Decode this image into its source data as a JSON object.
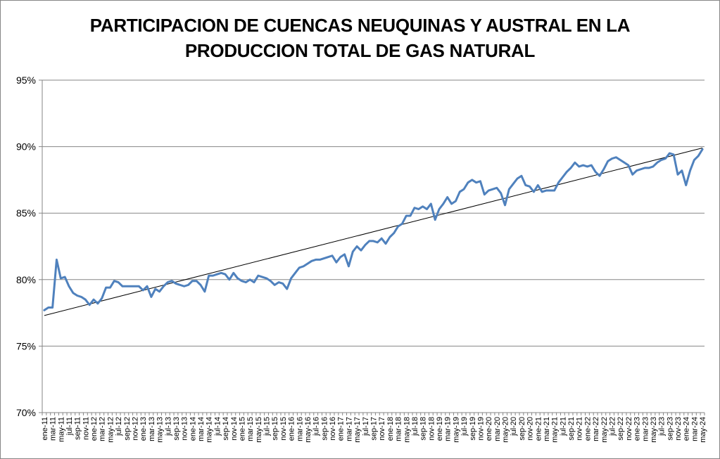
{
  "chart_data": {
    "type": "line",
    "title_line1": "PARTICIPACION DE CUENCAS NEUQUINAS Y AUSTRAL EN LA",
    "title_line2": "PRODUCCION TOTAL DE GAS NATURAL",
    "xlabel": "",
    "ylabel": "",
    "y_ticks": [
      "70%",
      "75%",
      "80%",
      "85%",
      "90%",
      "95%"
    ],
    "ylim": [
      70,
      95
    ],
    "grid": "horizontal",
    "legend": "none",
    "x_labels": [
      "ene-11",
      "mar-11",
      "may-11",
      "jul-11",
      "sep-11",
      "nov-11",
      "ene-12",
      "mar-12",
      "may-12",
      "jul-12",
      "sep-12",
      "nov-12",
      "ene-13",
      "mar-13",
      "may-13",
      "jul-13",
      "sep-13",
      "nov-13",
      "ene-14",
      "mar-14",
      "may-14",
      "jul-14",
      "sep-14",
      "nov-14",
      "ene-15",
      "mar-15",
      "may-15",
      "jul-15",
      "sep-15",
      "nov-15",
      "ene-16",
      "mar-16",
      "may-16",
      "jul-16",
      "sep-16",
      "nov-16",
      "ene-17",
      "mar-17",
      "may-17",
      "jul-17",
      "sep-17",
      "nov-17",
      "ene-18",
      "mar-18",
      "may-18",
      "jul-18",
      "sep-18",
      "nov-18",
      "ene-19",
      "mar-19",
      "may-19",
      "jul-19",
      "sep-19",
      "nov-19",
      "ene-20",
      "mar-20",
      "may-20",
      "jul-20",
      "sep-20",
      "nov-20",
      "ene-21",
      "mar-21",
      "may-21",
      "jul-21",
      "sep-21",
      "nov-21",
      "ene-22",
      "mar-22",
      "may-22",
      "jul-22",
      "sep-22",
      "nov-22",
      "ene-23",
      "mar-23",
      "may-23",
      "jul-23",
      "sep-23",
      "nov-23",
      "ene-24",
      "mar-24",
      "may-24"
    ],
    "series": [
      {
        "color": "#4F81BD",
        "values": [
          77.7,
          77.9,
          77.9,
          81.5,
          80.1,
          80.2,
          79.5,
          79.0,
          78.8,
          78.7,
          78.5,
          78.1,
          78.5,
          78.2,
          78.6,
          79.4,
          79.4,
          79.9,
          79.8,
          79.5,
          79.5,
          79.5,
          79.5,
          79.5,
          79.2,
          79.5,
          78.7,
          79.3,
          79.1,
          79.5,
          79.8,
          79.9,
          79.7,
          79.6,
          79.5,
          79.6,
          79.9,
          79.9,
          79.6,
          79.1,
          80.3,
          80.3,
          80.4,
          80.5,
          80.4,
          80.0,
          80.5,
          80.1,
          79.9,
          79.8,
          80.0,
          79.8,
          80.3,
          80.2,
          80.1,
          79.9,
          79.6,
          79.8,
          79.7,
          79.3,
          80.1,
          80.5,
          80.9,
          81.0,
          81.2,
          81.4,
          81.5,
          81.5,
          81.6,
          81.7,
          81.8,
          81.3,
          81.7,
          81.9,
          81.0,
          82.1,
          82.5,
          82.2,
          82.6,
          82.9,
          82.9,
          82.8,
          83.1,
          82.7,
          83.2,
          83.5,
          84.0,
          84.2,
          84.8,
          84.8,
          85.4,
          85.3,
          85.5,
          85.3,
          85.7,
          84.5,
          85.3,
          85.7,
          86.2,
          85.7,
          85.9,
          86.6,
          86.8,
          87.3,
          87.5,
          87.3,
          87.4,
          86.4,
          86.7,
          86.8,
          86.9,
          86.5,
          85.6,
          86.8,
          87.2,
          87.6,
          87.8,
          87.1,
          87.0,
          86.6,
          87.1,
          86.6,
          86.7,
          86.7,
          86.7,
          87.3,
          87.7,
          88.1,
          88.4,
          88.8,
          88.5,
          88.6,
          88.5,
          88.6,
          88.1,
          87.8,
          88.3,
          88.9,
          89.1,
          89.2,
          89.0,
          88.8,
          88.6,
          87.9,
          88.2,
          88.3,
          88.4,
          88.4,
          88.5,
          88.8,
          89.0,
          89.1,
          89.5,
          89.4,
          87.9,
          88.2,
          87.1,
          88.2,
          89.0,
          89.3,
          89.8
        ]
      }
    ],
    "trendline": {
      "color": "#000000",
      "start": 77.3,
      "end": 89.9
    }
  }
}
